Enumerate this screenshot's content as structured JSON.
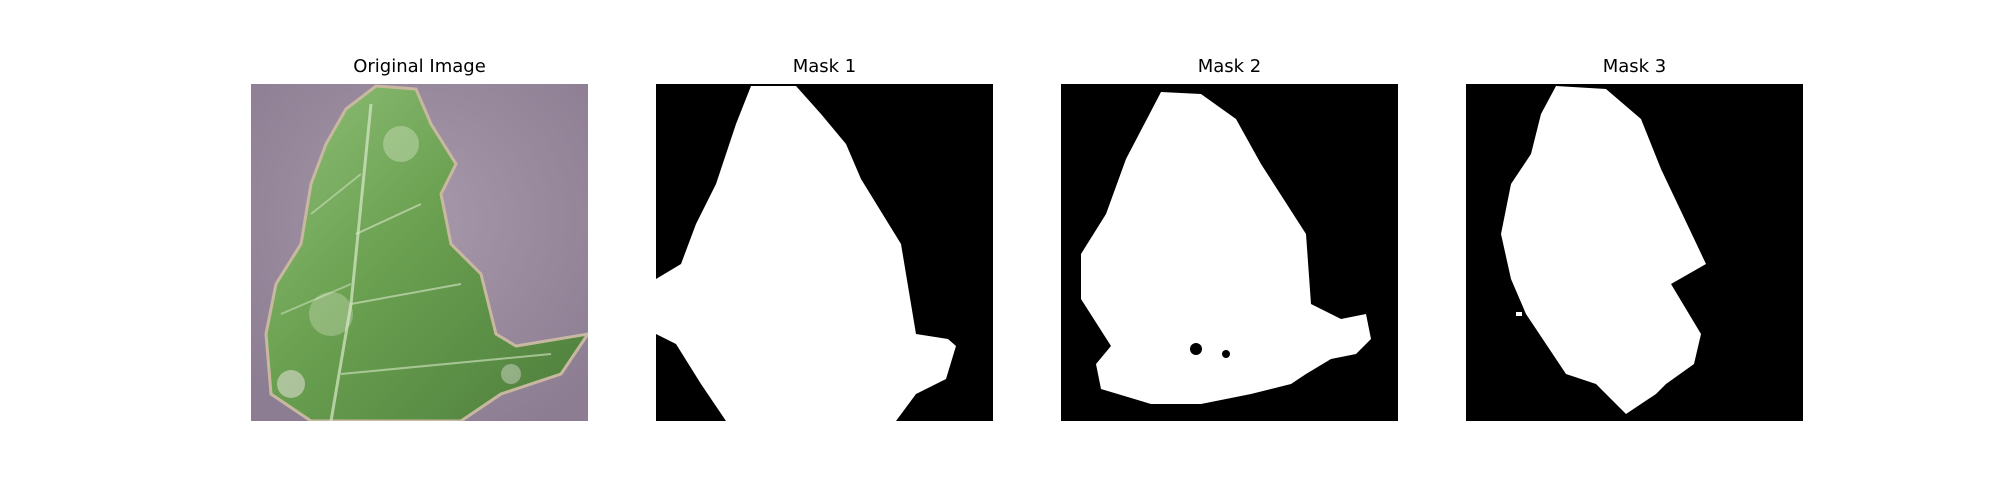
{
  "figure": {
    "panels": [
      {
        "title": "Original Image",
        "kind": "photo",
        "description_icon": "leaf-photo"
      },
      {
        "title": "Mask 1",
        "kind": "mask"
      },
      {
        "title": "Mask 2",
        "kind": "mask"
      },
      {
        "title": "Mask 3",
        "kind": "mask"
      }
    ]
  },
  "colors": {
    "background": "#ffffff",
    "mask_fg": "#ffffff",
    "mask_bg": "#000000",
    "photo_bg": "#9a8aa0",
    "leaf_green": "#6fa05a"
  }
}
